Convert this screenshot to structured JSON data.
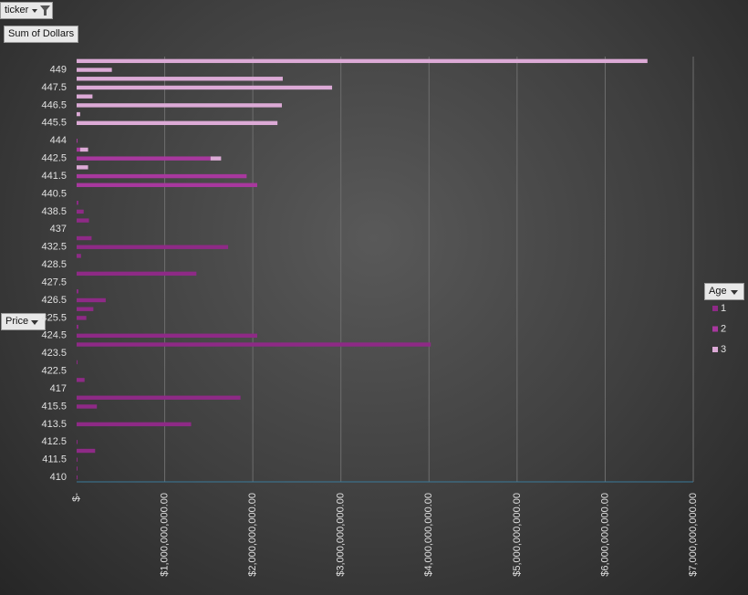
{
  "chart_data": {
    "type": "bar",
    "orientation": "horizontal",
    "stacked": true,
    "filter_label": "ticker",
    "value_field": "Sum of Dollars",
    "axis_field": "Price",
    "legend_title": "Age",
    "legend": "right",
    "grid": true,
    "categories": [
      "410",
      null,
      "411.5",
      null,
      "412.5",
      null,
      "413.5",
      null,
      "415.5",
      null,
      "417",
      null,
      "422.5",
      null,
      "423.5",
      null,
      "424.5",
      null,
      "425.5",
      null,
      "426.5",
      null,
      "427.5",
      null,
      "428.5",
      null,
      "432.5",
      null,
      "437",
      null,
      "438.5",
      null,
      "440.5",
      null,
      "441.5",
      null,
      "442.5",
      null,
      "444",
      null,
      "445.5",
      null,
      "446.5",
      null,
      "447.5",
      null,
      "449",
      null
    ],
    "series": [
      {
        "name": "1",
        "color": "#8e2a86",
        "values": [
          10000000,
          10000000,
          10000000,
          210000000,
          10000000,
          0,
          1300000000,
          0,
          230000000,
          1860000000,
          0,
          90000000,
          0,
          10000000,
          0,
          4020000000,
          2050000000,
          20000000,
          110000000,
          190000000,
          330000000,
          20000000,
          0,
          1360000000,
          0,
          50000000,
          1720000000,
          170000000,
          0,
          140000000,
          80000000,
          20000000,
          0,
          0,
          0,
          0,
          0,
          0,
          0,
          0,
          0,
          0,
          0,
          0,
          0,
          0,
          0,
          0
        ]
      },
      {
        "name": "2",
        "color": "#a8389e",
        "values": [
          0,
          0,
          0,
          0,
          0,
          0,
          0,
          0,
          0,
          0,
          0,
          0,
          0,
          0,
          0,
          0,
          0,
          0,
          0,
          0,
          0,
          0,
          0,
          0,
          0,
          0,
          0,
          0,
          0,
          0,
          0,
          0,
          0,
          2050000000,
          1930000000,
          0,
          1520000000,
          40000000,
          10000000,
          0,
          0,
          0,
          0,
          0,
          0,
          0,
          0,
          0
        ]
      },
      {
        "name": "3",
        "color": "#dcaad6",
        "values": [
          0,
          0,
          0,
          0,
          0,
          0,
          0,
          0,
          0,
          0,
          0,
          0,
          0,
          0,
          0,
          0,
          0,
          0,
          0,
          0,
          0,
          0,
          0,
          0,
          0,
          0,
          0,
          0,
          0,
          0,
          0,
          0,
          0,
          0,
          0,
          130000000,
          120000000,
          90000000,
          0,
          0,
          2280000000,
          40000000,
          2330000000,
          180000000,
          2900000000,
          2340000000,
          400000000,
          6480000000
        ]
      }
    ],
    "xlim": [
      0,
      7000000000
    ],
    "xticks": [
      {
        "value": 0,
        "label": "$-"
      },
      {
        "value": 1000000000,
        "label": "$1,000,000,000.00"
      },
      {
        "value": 2000000000,
        "label": "$2,000,000,000.00"
      },
      {
        "value": 3000000000,
        "label": "$3,000,000,000.00"
      },
      {
        "value": 4000000000,
        "label": "$4,000,000,000.00"
      },
      {
        "value": 5000000000,
        "label": "$5,000,000,000.00"
      },
      {
        "value": 6000000000,
        "label": "$6,000,000,000.00"
      },
      {
        "value": 7000000000,
        "label": "$7,000,000,000.00"
      }
    ]
  }
}
